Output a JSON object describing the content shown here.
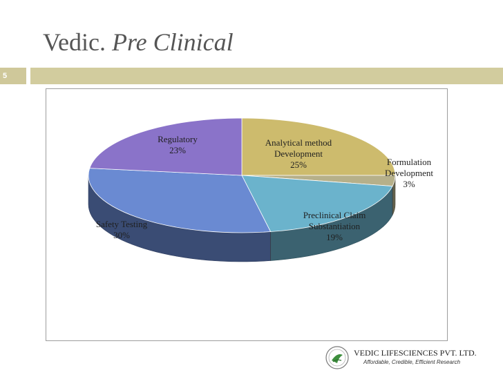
{
  "slide": {
    "title_main": "Vedic.",
    "title_italic": "Pre Clinical",
    "slide_number": "5"
  },
  "footer": {
    "company": "VEDIC LIFESCIENCES PVT. LTD.",
    "tagline": "Affordable, Credible, Efficient Research"
  },
  "colors": {
    "accent_bar": "#d2cc9e",
    "analytical": "#cdbb6d",
    "formulation": "#b6b08a",
    "preclinical": "#6bb3cc",
    "safety": "#6a8ad2",
    "regulatory": "#8a73c9"
  },
  "chart_data": {
    "type": "pie",
    "style": "3d",
    "title": "",
    "slices": [
      {
        "key": "analytical",
        "label_lines": [
          "Analytical method",
          "Development",
          "25%"
        ],
        "value": 25
      },
      {
        "key": "formulation",
        "label_lines": [
          "Formulation",
          "Development",
          "3%"
        ],
        "value": 3
      },
      {
        "key": "preclinical",
        "label_lines": [
          "Preclinical Claim",
          "Substantiation",
          "19%"
        ],
        "value": 19
      },
      {
        "key": "safety",
        "label_lines": [
          "Safety Testing",
          "30%"
        ],
        "value": 30
      },
      {
        "key": "regulatory",
        "label_lines": [
          "Regulatory",
          "23%"
        ],
        "value": 23
      }
    ]
  }
}
